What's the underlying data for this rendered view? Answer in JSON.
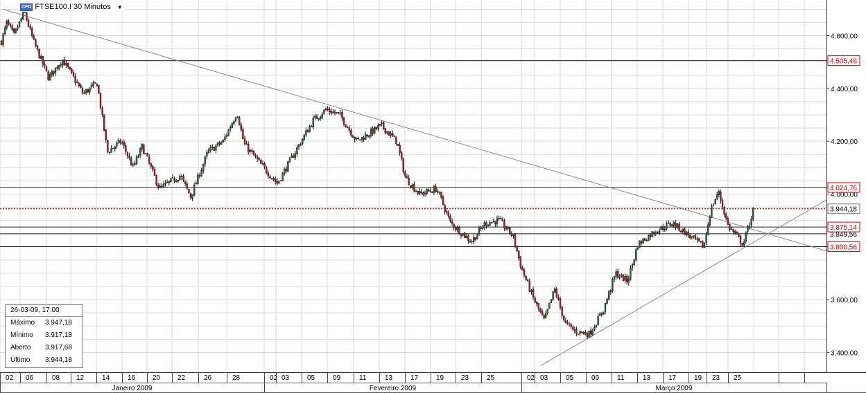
{
  "header": {
    "badge": "CFD",
    "title": "FTSE100.I 30 Minutos",
    "dropdown_icon": "caret-down-icon"
  },
  "info_box": {
    "datetime": "26-03-09, 17:00",
    "rows": [
      {
        "label": "Máximo",
        "value": "3.947,18"
      },
      {
        "label": "Mínimo",
        "value": "3.917,18"
      },
      {
        "label": "Aberto",
        "value": "3.917,68"
      },
      {
        "label": "Último",
        "value": "3.944,18"
      }
    ]
  },
  "colors": {
    "up_candle": "#2e6b3a",
    "down_candle": "#b01c1c",
    "wick": "#111111",
    "grid": "#d9d9d9",
    "trendline": "#8a8a8a",
    "level_line": "#222222",
    "last_price_line": "#d00000",
    "price_label_border": "#d00000",
    "price_label_text": "#c80000"
  },
  "chart_data": {
    "type": "candlestick",
    "symbol": "FTSE100.I",
    "timeframe": "30 Minutos",
    "y_ticks": [
      "4.600,00",
      "4.400,00",
      "4.200,00",
      "4.000,00",
      "3.800,00",
      "3.600,00",
      "3.400,00"
    ],
    "y_tick_values": [
      4600,
      4400,
      4200,
      4000,
      3800,
      3600,
      3400
    ],
    "ylim": [
      3325,
      4735
    ],
    "x_day_labels": [
      "02",
      "06",
      "08",
      "12",
      "14",
      "16",
      "20",
      "22",
      "26",
      "28",
      "02",
      "03",
      "05",
      "09",
      "11",
      "13",
      "17",
      "19",
      "23",
      "25",
      "02",
      "03",
      "05",
      "09",
      "11",
      "13",
      "17",
      "19",
      "23",
      "25"
    ],
    "months": [
      "Janeiro 2009",
      "Fevereiro 2009",
      "Março 2009"
    ],
    "last_price": {
      "value": 3944.18,
      "label": "3.944,18"
    },
    "horizontal_levels": [
      {
        "value": 4505.48,
        "label": "4.505,48",
        "highlight": true
      },
      {
        "value": 4024.76,
        "label": "4.024,76",
        "highlight": true
      },
      {
        "value": 3875.14,
        "label": "3.875,14",
        "highlight": true
      },
      {
        "value": 3849.56,
        "label": "3.849,56",
        "highlight": false
      },
      {
        "value": 3800.56,
        "label": "3.800,56",
        "highlight": true
      }
    ],
    "trendlines": [
      {
        "name": "descending",
        "from": {
          "bar": 4,
          "price": 4700
        },
        "to": {
          "bar": 1200,
          "price": 3778
        }
      },
      {
        "name": "ascending",
        "from": {
          "bar": 780,
          "price": 3350
        },
        "to": {
          "bar": 1200,
          "price": 3990
        }
      }
    ],
    "path_keypoints": [
      [
        0,
        4560
      ],
      [
        10,
        4650
      ],
      [
        20,
        4600
      ],
      [
        35,
        4690
      ],
      [
        48,
        4580
      ],
      [
        70,
        4440
      ],
      [
        90,
        4510
      ],
      [
        120,
        4380
      ],
      [
        140,
        4420
      ],
      [
        155,
        4160
      ],
      [
        175,
        4200
      ],
      [
        192,
        4100
      ],
      [
        205,
        4180
      ],
      [
        230,
        4020
      ],
      [
        260,
        4070
      ],
      [
        275,
        3990
      ],
      [
        300,
        4160
      ],
      [
        322,
        4200
      ],
      [
        342,
        4310
      ],
      [
        352,
        4190
      ],
      [
        380,
        4100
      ],
      [
        400,
        4040
      ],
      [
        430,
        4180
      ],
      [
        452,
        4280
      ],
      [
        470,
        4320
      ],
      [
        490,
        4300
      ],
      [
        515,
        4200
      ],
      [
        550,
        4260
      ],
      [
        572,
        4200
      ],
      [
        585,
        4060
      ],
      [
        605,
        4000
      ],
      [
        630,
        4020
      ],
      [
        650,
        3890
      ],
      [
        680,
        3820
      ],
      [
        700,
        3890
      ],
      [
        720,
        3900
      ],
      [
        740,
        3840
      ],
      [
        752,
        3720
      ],
      [
        770,
        3600
      ],
      [
        785,
        3520
      ],
      [
        800,
        3640
      ],
      [
        815,
        3510
      ],
      [
        830,
        3480
      ],
      [
        850,
        3470
      ],
      [
        870,
        3560
      ],
      [
        888,
        3700
      ],
      [
        905,
        3670
      ],
      [
        920,
        3810
      ],
      [
        945,
        3860
      ],
      [
        970,
        3890
      ],
      [
        995,
        3840
      ],
      [
        1015,
        3800
      ],
      [
        1025,
        3940
      ],
      [
        1036,
        4010
      ],
      [
        1050,
        3880
      ],
      [
        1072,
        3810
      ],
      [
        1087,
        3944
      ]
    ]
  }
}
